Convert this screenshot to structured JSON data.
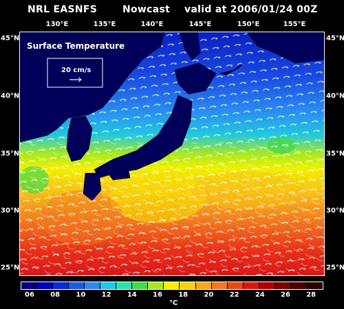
{
  "header": {
    "source": "NRL EASNFS",
    "kind": "Nowcast",
    "valid": "valid at 2006/01/24 00Z"
  },
  "map": {
    "field_title": "Surface Temperature",
    "vector_scale_label": "20 cm/s",
    "lon_labels": [
      "130°E",
      "135°E",
      "140°E",
      "145°E",
      "150°E",
      "155°E"
    ],
    "lat_labels_left": [
      "45°N",
      "40°N",
      "35°N",
      "30°N",
      "25°N"
    ],
    "lat_labels_right": [
      "45°N",
      "40°N",
      "35°N",
      "30°N",
      "25°N"
    ],
    "land_color": "#000055"
  },
  "colorbar": {
    "ticks": [
      "06",
      "08",
      "10",
      "12",
      "14",
      "16",
      "18",
      "20",
      "22",
      "24",
      "26",
      "28"
    ],
    "unit": "°C",
    "colors": [
      "#00007a",
      "#0000c0",
      "#0a2ae0",
      "#1a5ae8",
      "#2a8af0",
      "#20c8e8",
      "#28e0b0",
      "#44d84a",
      "#a8e820",
      "#f0f000",
      "#f8d010",
      "#f8a818",
      "#f07820",
      "#e84818",
      "#d81818",
      "#b00000",
      "#7a0000",
      "#4a0000",
      "#2a0000"
    ]
  }
}
